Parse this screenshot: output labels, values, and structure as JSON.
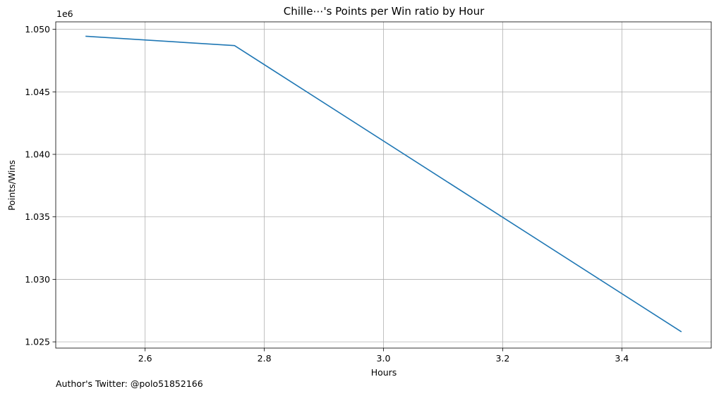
{
  "chart_data": {
    "type": "line",
    "title": "Chille⋯'s Points per Win ratio by Hour",
    "xlabel": "Hours",
    "ylabel": "Points/Wins",
    "y_multiplier": "1e6",
    "x_ticks": [
      "2.6",
      "2.8",
      "3.0",
      "3.2",
      "3.4"
    ],
    "x_tick_values": [
      2.6,
      2.8,
      3.0,
      3.2,
      3.4
    ],
    "y_ticks": [
      "1.025",
      "1.030",
      "1.035",
      "1.040",
      "1.045",
      "1.050"
    ],
    "y_tick_values": [
      1.025,
      1.03,
      1.035,
      1.04,
      1.045,
      1.05
    ],
    "xlim": [
      2.45,
      3.55
    ],
    "ylim": [
      1.0245,
      1.0506
    ],
    "grid": true,
    "series": [
      {
        "color": "#1f77b4",
        "x": [
          2.5,
          2.75,
          3.5
        ],
        "y": [
          1.04945,
          1.0487,
          1.0258
        ]
      }
    ]
  },
  "footer": {
    "note": "Author's Twitter: @polo51852166"
  }
}
